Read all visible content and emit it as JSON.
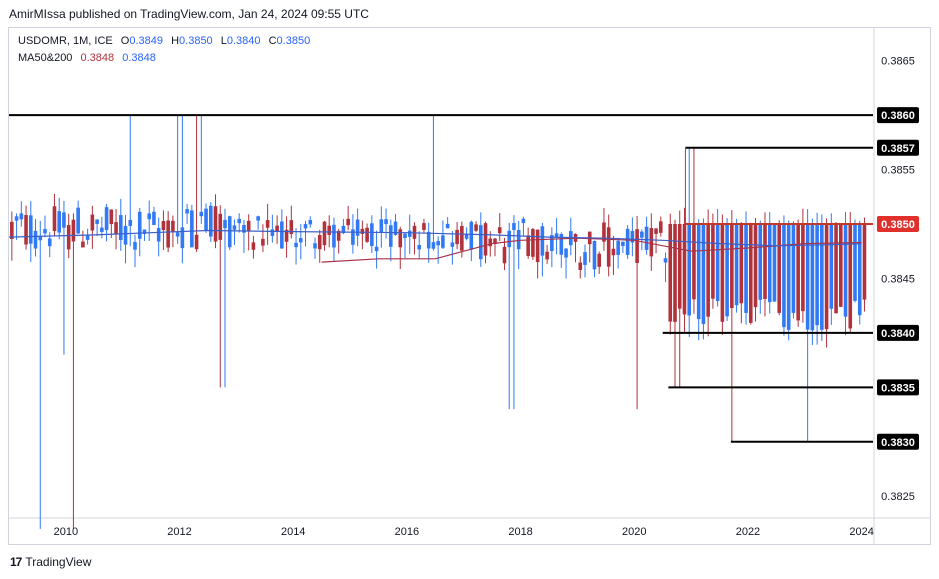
{
  "header": {
    "published": "AmirMIssa published on TradingView.com, Jan 24, 2024 09:55 UTC"
  },
  "legend": {
    "symbol": "USDOMR, 1M, ICE",
    "o_label": "O",
    "o": "0.3849",
    "h_label": "H",
    "h": "0.3850",
    "l_label": "L",
    "l": "0.3840",
    "c_label": "C",
    "c": "0.3850",
    "ma_label": "MA50&200",
    "ma50": "0.3848",
    "ma200": "0.3848"
  },
  "footer": {
    "brand": "TradingView",
    "logo": "17"
  },
  "colors": {
    "up": "#3179f5",
    "down": "#b2323c",
    "level": "#000000",
    "resistance": "#c0392b",
    "ma50": "#a8334a",
    "ma200": "#3a5fc8"
  },
  "chart_data": {
    "type": "candlestick",
    "symbol": "USDOMR",
    "timeframe": "1M",
    "title": "USDOMR, 1M, ICE",
    "x_range": [
      2009.0,
      2024.2
    ],
    "y_range": [
      0.3823,
      0.3868
    ],
    "x_ticks": [
      2010,
      2012,
      2014,
      2016,
      2018,
      2020,
      2022,
      2024
    ],
    "x_tick_labels": [
      "2010",
      "2012",
      "2014",
      "2016",
      "2018",
      "2020",
      "2022",
      "2024"
    ],
    "y_ticks": [
      0.3825,
      0.3845,
      0.3855,
      0.3865
    ],
    "y_tick_labels": [
      "0.3825",
      "0.3845",
      "0.3855",
      "0.3865"
    ],
    "price_levels": [
      {
        "label": "0.3860",
        "value": 0.386,
        "from": 2009.0,
        "to": 2024.2,
        "badge": "dark"
      },
      {
        "label": "0.3857",
        "value": 0.3857,
        "from": 2020.9,
        "to": 2024.2,
        "badge": "dark"
      },
      {
        "label": "0.3850",
        "value": 0.385,
        "from": 2020.9,
        "to": 2024.2,
        "badge": "red"
      },
      {
        "label": "0.3840",
        "value": 0.384,
        "from": 2020.5,
        "to": 2024.2,
        "badge": "dark"
      },
      {
        "label": "0.3835",
        "value": 0.3835,
        "from": 2020.6,
        "to": 2024.2,
        "badge": "dark"
      },
      {
        "label": "0.3830",
        "value": 0.383,
        "from": 2021.7,
        "to": 2024.2,
        "badge": "dark"
      }
    ],
    "moving_averages": [
      {
        "name": "MA50",
        "color": "#a8334a",
        "points": [
          [
            2014.5,
            0.38465
          ],
          [
            2015.5,
            0.38468
          ],
          [
            2016.5,
            0.38468
          ],
          [
            2017.0,
            0.38475
          ],
          [
            2017.5,
            0.38482
          ],
          [
            2018.0,
            0.38485
          ],
          [
            2019.0,
            0.38487
          ],
          [
            2020.0,
            0.38485
          ],
          [
            2021.0,
            0.38475
          ],
          [
            2022.0,
            0.38478
          ],
          [
            2023.0,
            0.38482
          ],
          [
            2024.0,
            0.38483
          ]
        ]
      },
      {
        "name": "MA200",
        "color": "#3a5fc8",
        "points": [
          [
            2009.0,
            0.38488
          ],
          [
            2010.5,
            0.3849
          ],
          [
            2011.5,
            0.38492
          ],
          [
            2012.5,
            0.38494
          ],
          [
            2014.0,
            0.38493
          ],
          [
            2016.0,
            0.38492
          ],
          [
            2017.5,
            0.3849
          ],
          [
            2018.5,
            0.38488
          ],
          [
            2019.5,
            0.38487
          ],
          [
            2020.5,
            0.38485
          ],
          [
            2021.5,
            0.38482
          ],
          [
            2022.5,
            0.3848
          ],
          [
            2023.5,
            0.38481
          ],
          [
            2024.0,
            0.38482
          ]
        ]
      }
    ]
  }
}
